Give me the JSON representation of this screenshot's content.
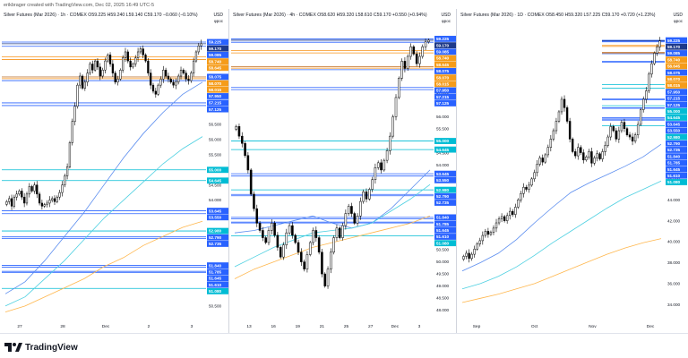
{
  "credit": "erikbrager created with TradingView.com, Dec 02, 2025 16:49 UTC-5",
  "footer": {
    "brand": "TradingView",
    "logo_icon": "tradingview-logo-icon"
  },
  "colors": {
    "up": "#ffffff",
    "down": "#000000",
    "blue_level": "#2962ff",
    "orange_level": "#f7931a",
    "cyan_level": "#00bcd4",
    "ma_blue": "#5b8def",
    "ma_cyan": "#4dd0e1",
    "ma_orange": "#ffb74d",
    "label_blue": "#2962ff",
    "label_orange": "#f59c1a",
    "label_cyan": "#00bcd4",
    "label_navy": "#1e3a8a"
  },
  "chart_data": [
    {
      "type": "candlestick",
      "title": "Silver Futures (Mar 2026) · 1h · COMEX",
      "ohlc_text": "O59.225 H59.240 L59.140 C59.170 −0.060 (−0.10%)",
      "currency": "USD",
      "sub": "φpoc",
      "ylim": [
        50.2,
        59.55
      ],
      "x_ticks": [
        "27",
        "28",
        "Dec",
        "2",
        "3"
      ],
      "closes": [
        53.95,
        54.05,
        53.8,
        54.1,
        54.2,
        54.3,
        54.1,
        53.9,
        54.2,
        54.45,
        54.3,
        54.5,
        54.2,
        53.9,
        53.8,
        53.85,
        53.9,
        54.0,
        54.05,
        53.95,
        54.1,
        54.25,
        54.5,
        54.8,
        55.1,
        55.9,
        56.6,
        57.1,
        57.8,
        58.1,
        57.7,
        57.9,
        58.2,
        58.5,
        58.3,
        58.6,
        58.4,
        58.1,
        58.3,
        58.6,
        58.8,
        58.5,
        58.2,
        57.9,
        58.0,
        58.3,
        58.7,
        58.9,
        58.6,
        58.4,
        58.5,
        58.7,
        58.9,
        59.0,
        58.8,
        58.6,
        58.2,
        57.8,
        57.6,
        57.5,
        57.8,
        58.0,
        58.3,
        58.1,
        58.0,
        57.9,
        57.8,
        57.9,
        58.1,
        58.3,
        58.2,
        58.0,
        57.95,
        58.2,
        58.6,
        58.9,
        59.1,
        59.17
      ],
      "ma": [
        {
          "color": "blue",
          "values": [
            50.9,
            51.3,
            52.0,
            52.8,
            53.6,
            54.5,
            55.4,
            56.2,
            56.9,
            57.5,
            57.9
          ]
        },
        {
          "color": "cyan",
          "values": [
            50.5,
            50.8,
            51.4,
            52.0,
            52.7,
            53.4,
            54.0,
            54.6,
            55.2,
            55.7,
            56.1
          ]
        },
        {
          "color": "orange",
          "values": [
            50.3,
            50.5,
            50.8,
            51.1,
            51.4,
            51.8,
            52.1,
            52.5,
            52.8,
            53.1,
            53.3
          ]
        }
      ],
      "levels": [
        {
          "value": "59.225",
          "color": "blue"
        },
        {
          "value": "59.170",
          "color": "navy"
        },
        {
          "value": "59.085",
          "color": "blue"
        },
        {
          "value": "58.740",
          "color": "orange"
        },
        {
          "value": "58.645",
          "color": "orange"
        },
        {
          "value": "58.075",
          "color": "blue"
        },
        {
          "value": "58.070",
          "color": "orange"
        },
        {
          "value": "58.015",
          "color": "orange"
        },
        {
          "value": "57.950",
          "color": "blue"
        },
        {
          "value": "57.215",
          "color": "blue"
        },
        {
          "value": "57.125",
          "color": "blue"
        },
        {
          "value": "55.000",
          "color": "cyan"
        },
        {
          "value": "54.645",
          "color": "cyan"
        },
        {
          "value": "53.645",
          "color": "blue"
        },
        {
          "value": "53.550",
          "color": "blue"
        },
        {
          "value": "52.980",
          "color": "cyan"
        },
        {
          "value": "52.790",
          "color": "blue"
        },
        {
          "value": "52.735",
          "color": "blue"
        },
        {
          "value": "51.840",
          "color": "blue"
        },
        {
          "value": "51.785",
          "color": "blue"
        },
        {
          "value": "51.645",
          "color": "blue"
        },
        {
          "value": "51.610",
          "color": "blue"
        },
        {
          "value": "51.080",
          "color": "cyan"
        }
      ],
      "axis_ticks": [
        "57.000",
        "56.500",
        "56.000",
        "55.500",
        "54.500",
        "54.000",
        "53.000",
        "51.000",
        "50.500"
      ]
    },
    {
      "type": "candlestick",
      "title": "Silver Futures (Mar 2026) · 4h · COMEX",
      "ohlc_text": "O58.620 H59.320 L58.610 C59.170 +0.550 (+0.94%)",
      "currency": "USD",
      "sub": "φpoc",
      "ylim": [
        47.8,
        59.5
      ],
      "x_ticks": [
        "13",
        "16",
        "19",
        "21",
        "25",
        "27",
        "Dec",
        "3"
      ],
      "closes": [
        55.6,
        55.2,
        54.9,
        54.4,
        53.8,
        52.8,
        52.2,
        51.6,
        51.3,
        51.0,
        50.8,
        51.3,
        51.6,
        51.1,
        50.6,
        50.2,
        50.7,
        51.2,
        51.5,
        51.1,
        50.8,
        50.4,
        50.0,
        49.7,
        50.3,
        50.8,
        51.3,
        51.0,
        50.4,
        49.5,
        49.0,
        49.7,
        50.4,
        51.0,
        51.4,
        51.0,
        51.5,
        52.0,
        52.3,
        52.0,
        51.6,
        51.9,
        52.5,
        52.9,
        52.6,
        53.0,
        53.4,
        53.9,
        54.1,
        53.8,
        54.2,
        54.6,
        55.2,
        56.0,
        56.8,
        57.6,
        58.3,
        58.0,
        58.5,
        58.9,
        58.6,
        58.2,
        58.5,
        58.9,
        59.1,
        59.17
      ],
      "ma": [
        {
          "color": "blue",
          "values": [
            51.2,
            51.3,
            51.5,
            51.7,
            51.9,
            51.6,
            51.4,
            51.6,
            52.2,
            53.0,
            53.8
          ]
        },
        {
          "color": "cyan",
          "values": [
            49.8,
            50.2,
            50.6,
            50.9,
            51.2,
            51.3,
            51.4,
            51.6,
            52.1,
            52.6,
            53.2
          ]
        },
        {
          "color": "orange",
          "values": [
            49.3,
            49.7,
            50.0,
            50.3,
            50.6,
            50.8,
            51.0,
            51.2,
            51.4,
            51.6,
            51.9
          ]
        }
      ],
      "levels": [
        {
          "value": "59.225",
          "color": "blue"
        },
        {
          "value": "59.170",
          "color": "navy"
        },
        {
          "value": "59.085",
          "color": "blue"
        },
        {
          "value": "58.740",
          "color": "orange"
        },
        {
          "value": "58.645",
          "color": "orange"
        },
        {
          "value": "58.075",
          "color": "blue"
        },
        {
          "value": "58.070",
          "color": "orange"
        },
        {
          "value": "58.015",
          "color": "orange"
        },
        {
          "value": "57.950",
          "color": "blue"
        },
        {
          "value": "57.215",
          "color": "blue"
        },
        {
          "value": "57.125",
          "color": "blue"
        },
        {
          "value": "55.000",
          "color": "cyan"
        },
        {
          "value": "54.645",
          "color": "cyan"
        },
        {
          "value": "53.645",
          "color": "blue"
        },
        {
          "value": "53.550",
          "color": "blue"
        },
        {
          "value": "52.980",
          "color": "cyan"
        },
        {
          "value": "52.790",
          "color": "blue"
        },
        {
          "value": "52.735",
          "color": "blue"
        },
        {
          "value": "51.840",
          "color": "blue"
        },
        {
          "value": "51.785",
          "color": "blue"
        },
        {
          "value": "51.645",
          "color": "blue"
        },
        {
          "value": "51.610",
          "color": "blue"
        },
        {
          "value": "51.080",
          "color": "cyan"
        }
      ],
      "axis_ticks": [
        "57.000",
        "56.500",
        "56.000",
        "55.500",
        "54.500",
        "54.000",
        "53.000",
        "51.000",
        "50.500",
        "50.000",
        "49.500",
        "49.000",
        "48.500",
        "48.000"
      ]
    },
    {
      "type": "candlestick",
      "title": "Silver Futures (Mar 2026) · 1D · COMEX",
      "ohlc_text": "O58.450 H59.320 L57.225 C59.170 +0.720 (+1.23%)",
      "currency": "USD",
      "sub": "φpoc",
      "ylim": [
        33.0,
        60.0
      ],
      "x_ticks": [
        "Sep",
        "Oct",
        "Nov",
        "Dec"
      ],
      "closes": [
        38.6,
        38.9,
        38.4,
        38.8,
        39.3,
        39.8,
        40.1,
        40.6,
        41.0,
        40.7,
        40.9,
        41.3,
        41.8,
        42.2,
        42.4,
        42.0,
        42.5,
        42.9,
        42.6,
        43.3,
        44.0,
        44.6,
        45.2,
        45.0,
        45.4,
        46.0,
        46.6,
        47.4,
        48.0,
        47.6,
        48.3,
        49.0,
        49.8,
        50.6,
        51.5,
        52.4,
        53.6,
        52.8,
        51.5,
        49.8,
        48.6,
        48.2,
        49.0,
        48.5,
        47.8,
        48.1,
        48.6,
        47.5,
        48.0,
        48.4,
        47.9,
        48.6,
        49.2,
        50.0,
        51.0,
        50.6,
        49.8,
        50.6,
        51.4,
        50.8,
        50.2,
        50.0,
        49.6,
        50.2,
        51.2,
        52.6,
        53.6,
        54.4,
        56.0,
        57.0,
        58.0,
        58.6,
        59.17
      ],
      "ma": [
        {
          "color": "blue",
          "values": [
            37.2,
            38.0,
            38.9,
            40.2,
            41.8,
            43.3,
            44.7,
            45.6,
            46.4,
            47.2,
            48.1,
            49.3
          ]
        },
        {
          "color": "cyan",
          "values": [
            35.5,
            36.0,
            36.7,
            37.6,
            38.7,
            39.9,
            41.0,
            42.1,
            43.2,
            44.2,
            45.0,
            45.8
          ]
        },
        {
          "color": "orange",
          "values": [
            34.2,
            34.6,
            35.0,
            35.5,
            36.0,
            36.7,
            37.4,
            38.1,
            38.8,
            39.4,
            39.9,
            40.3
          ]
        }
      ],
      "levels": [
        {
          "value": "59.225",
          "color": "blue"
        },
        {
          "value": "59.170",
          "color": "navy"
        },
        {
          "value": "59.085",
          "color": "blue"
        },
        {
          "value": "58.740",
          "color": "orange"
        },
        {
          "value": "58.645",
          "color": "orange"
        },
        {
          "value": "58.075",
          "color": "blue"
        },
        {
          "value": "58.070",
          "color": "orange"
        },
        {
          "value": "58.015",
          "color": "orange"
        },
        {
          "value": "57.950",
          "color": "blue"
        },
        {
          "value": "57.215",
          "color": "blue"
        },
        {
          "value": "57.125",
          "color": "blue"
        },
        {
          "value": "55.000",
          "color": "cyan"
        },
        {
          "value": "54.645",
          "color": "cyan"
        },
        {
          "value": "53.645",
          "color": "blue"
        },
        {
          "value": "53.550",
          "color": "blue"
        },
        {
          "value": "52.980",
          "color": "cyan"
        },
        {
          "value": "52.790",
          "color": "blue"
        },
        {
          "value": "52.735",
          "color": "blue"
        },
        {
          "value": "51.840",
          "color": "blue"
        },
        {
          "value": "51.785",
          "color": "blue"
        },
        {
          "value": "51.645",
          "color": "blue"
        },
        {
          "value": "51.610",
          "color": "blue"
        },
        {
          "value": "51.080",
          "color": "cyan"
        }
      ],
      "axis_ticks": [
        "46.000",
        "44.000",
        "42.000",
        "40.000",
        "38.000",
        "36.000",
        "34.000"
      ]
    }
  ]
}
